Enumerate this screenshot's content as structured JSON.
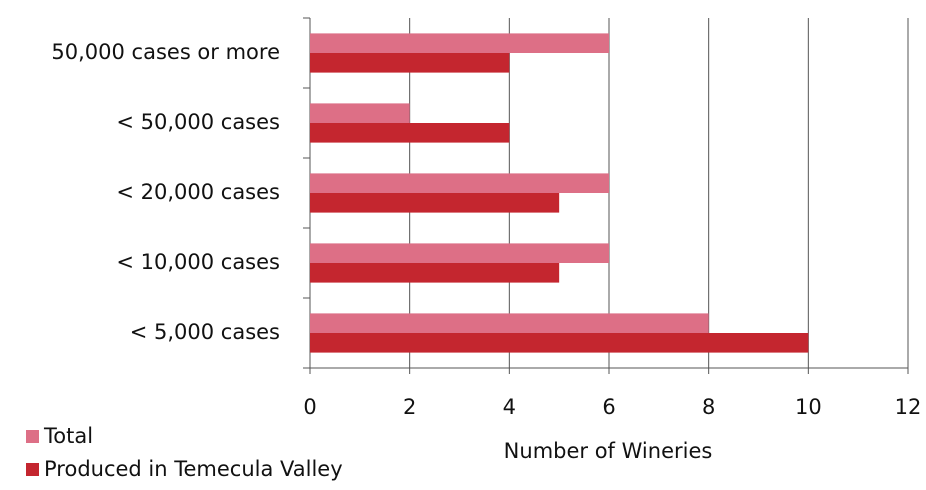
{
  "chart_data": {
    "type": "bar",
    "orientation": "horizontal",
    "x_label": "Number of Wineries",
    "categories": [
      "50,000 cases or more",
      "< 50,000 cases",
      "< 20,000 cases",
      "< 10,000 cases",
      "< 5,000 cases"
    ],
    "series": [
      {
        "name": "Total",
        "color": "#dd6f86",
        "values": [
          6,
          2,
          6,
          6,
          8
        ]
      },
      {
        "name": "Produced in Temecula Valley",
        "color": "#c4262f",
        "values": [
          4,
          4,
          5,
          5,
          10
        ]
      }
    ],
    "xlim": [
      0,
      12
    ],
    "xticks": [
      0,
      2,
      4,
      6,
      8,
      10,
      12
    ],
    "grid": true,
    "legend": "bottom-left"
  }
}
